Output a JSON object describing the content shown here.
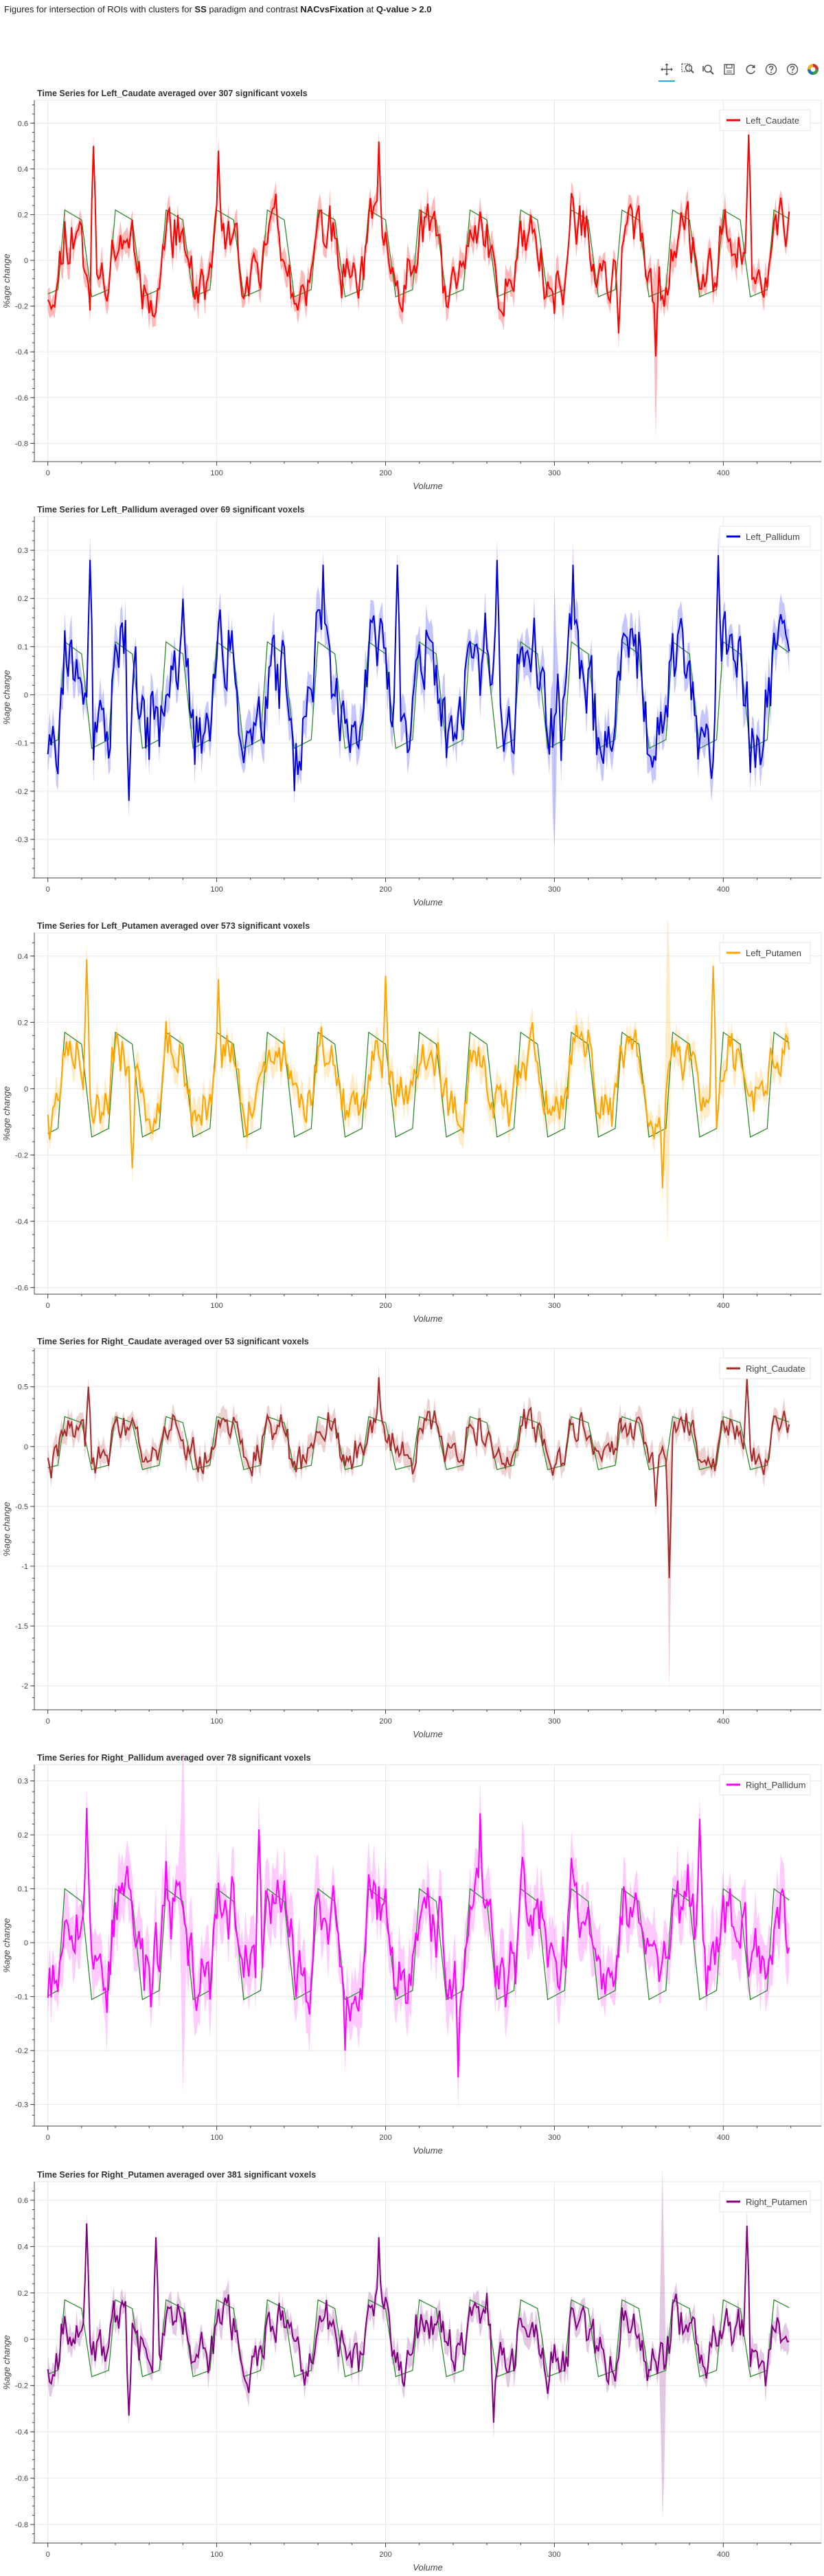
{
  "page": {
    "title_segments": [
      {
        "text": "Figures for intersection of ROIs with clusters for ",
        "bold": false
      },
      {
        "text": "SS",
        "bold": true
      },
      {
        "text": " paradigm and contrast ",
        "bold": false
      },
      {
        "text": "NACvsFixation",
        "bold": true
      },
      {
        "text": " at ",
        "bold": false
      },
      {
        "text": "Q-value > 2.0",
        "bold": true
      }
    ]
  },
  "toolbar": {
    "tools": [
      {
        "icon": "pan-icon",
        "active": true
      },
      {
        "icon": "box-zoom-icon",
        "active": false
      },
      {
        "icon": "wheel-zoom-icon",
        "active": false
      },
      {
        "icon": "save-icon",
        "active": false
      },
      {
        "icon": "reset-icon",
        "active": false
      },
      {
        "icon": "hover-icon",
        "active": false
      },
      {
        "icon": "help-icon",
        "active": false
      },
      {
        "icon": "bokeh-logo-icon",
        "active": false
      }
    ]
  },
  "chart_data": [
    {
      "type": "line",
      "title": "Time Series for Left_Caudate averaged over 307 significant voxels",
      "xlabel": "Volume",
      "ylabel": "%age change",
      "xlim": [
        -8,
        458
      ],
      "ylim": [
        -0.88,
        0.7
      ],
      "xticks": [
        0,
        100,
        200,
        300,
        400
      ],
      "yticks": [
        -0.8,
        -0.6,
        -0.4,
        -0.2,
        0,
        0.2,
        0.4,
        0.6
      ],
      "ytick_labels": [
        "-0.8",
        "-0.6",
        "-0.4",
        "-0.2",
        "0",
        "0.2",
        "0.4",
        "0.6"
      ],
      "grid": true,
      "legend_position": "top-right",
      "series": [
        {
          "name": "Left_Caudate",
          "color": "#ff0000",
          "band_color": "#ff0000",
          "amplitude": 0.18,
          "mean": -0.02,
          "band": 0.05,
          "seed": 11,
          "peaks": [
            [
              27,
              0.5
            ],
            [
              101,
              0.48
            ],
            [
              196,
              0.52
            ],
            [
              415,
              0.55
            ]
          ],
          "dips": [
            [
              338,
              -0.32
            ],
            [
              360,
              -0.42
            ]
          ],
          "wide_dips": [
            [
              360,
              -0.78
            ]
          ]
        },
        {
          "name": "model",
          "color": "#2e8b2e",
          "model": true,
          "amplitude": 0.24,
          "base": -0.02
        }
      ]
    },
    {
      "type": "line",
      "title": "Time Series for Left_Pallidum averaged over 69 significant voxels",
      "xlabel": "Volume",
      "ylabel": "%age change",
      "xlim": [
        -8,
        458
      ],
      "ylim": [
        -0.38,
        0.37
      ],
      "xticks": [
        0,
        100,
        200,
        300,
        400
      ],
      "yticks": [
        -0.3,
        -0.2,
        -0.1,
        0,
        0.1,
        0.2,
        0.3
      ],
      "ytick_labels": [
        "-0.3",
        "-0.2",
        "-0.1",
        "0",
        "0.1",
        "0.2",
        "0.3"
      ],
      "grid": true,
      "legend_position": "top-right",
      "series": [
        {
          "name": "Left_Pallidum",
          "color": "#0000dd",
          "band_color": "#3333ff",
          "amplitude": 0.13,
          "mean": -0.02,
          "band": 0.035,
          "seed": 23,
          "peaks": [
            [
              25,
              0.28
            ],
            [
              163,
              0.27
            ],
            [
              207,
              0.27
            ],
            [
              266,
              0.28
            ],
            [
              311,
              0.27
            ],
            [
              397,
              0.29
            ]
          ],
          "dips": [
            [
              48,
              -0.22
            ],
            [
              146,
              -0.2
            ]
          ],
          "wide_dips": [
            [
              300,
              -0.32
            ]
          ]
        },
        {
          "name": "model",
          "color": "#2e8b2e",
          "model": true,
          "amplitude": 0.14,
          "base": -0.03
        }
      ]
    },
    {
      "type": "line",
      "title": "Time Series for Left_Putamen averaged over 573 significant voxels",
      "xlabel": "Volume",
      "ylabel": "%age change",
      "xlim": [
        -8,
        458
      ],
      "ylim": [
        -0.62,
        0.47
      ],
      "xticks": [
        0,
        100,
        200,
        300,
        400
      ],
      "yticks": [
        -0.6,
        -0.4,
        -0.2,
        0,
        0.2,
        0.4
      ],
      "ytick_labels": [
        "-0.6",
        "-0.4",
        "-0.2",
        "0",
        "0.2",
        "0.4"
      ],
      "grid": true,
      "legend_position": "top-right",
      "series": [
        {
          "name": "Left_Putamen",
          "color": "#ffa500",
          "band_color": "#ffb733",
          "amplitude": 0.12,
          "mean": 0.0,
          "band": 0.04,
          "seed": 37,
          "peaks": [
            [
              23,
              0.39
            ],
            [
              101,
              0.33
            ],
            [
              200,
              0.34
            ],
            [
              394,
              0.37
            ]
          ],
          "dips": [
            [
              50,
              -0.24
            ],
            [
              364,
              -0.3
            ]
          ],
          "wide_dips": [
            [
              367,
              -0.48
            ]
          ]
        },
        {
          "name": "model",
          "color": "#2e8b2e",
          "model": true,
          "amplitude": 0.2,
          "base": -0.03
        }
      ]
    },
    {
      "type": "line",
      "title": "Time Series for Right_Caudate averaged over 53 significant voxels",
      "xlabel": "Volume",
      "ylabel": "%age change",
      "xlim": [
        -8,
        458
      ],
      "ylim": [
        -2.2,
        0.82
      ],
      "xticks": [
        0,
        100,
        200,
        300,
        400
      ],
      "yticks": [
        -2,
        -1.5,
        -1,
        -0.5,
        0,
        0.5
      ],
      "ytick_labels": [
        "-2",
        "-1.5",
        "-1",
        "-0.5",
        "0",
        "0.5"
      ],
      "grid": true,
      "legend_position": "top-right",
      "series": [
        {
          "name": "Right_Caudate",
          "color": "#a52a2a",
          "band_color": "#c05a5a",
          "amplitude": 0.2,
          "mean": 0.0,
          "band": 0.08,
          "seed": 41,
          "peaks": [
            [
              196,
              0.58
            ],
            [
              414,
              0.57
            ],
            [
              24,
              0.5
            ]
          ],
          "dips": [
            [
              368,
              -1.1
            ],
            [
              360,
              -0.5
            ]
          ],
          "wide_dips": [
            [
              368,
              -2.05
            ]
          ]
        },
        {
          "name": "model",
          "color": "#2e8b2e",
          "model": true,
          "amplitude": 0.28,
          "base": -0.03
        }
      ]
    },
    {
      "type": "line",
      "title": "Time Series for Right_Pallidum averaged over 78 significant voxels",
      "xlabel": "Volume",
      "ylabel": "%age change",
      "xlim": [
        -8,
        458
      ],
      "ylim": [
        -0.34,
        0.33
      ],
      "xticks": [
        0,
        100,
        200,
        300,
        400
      ],
      "yticks": [
        -0.3,
        -0.2,
        -0.1,
        0,
        0.1,
        0.2,
        0.3
      ],
      "ytick_labels": [
        "-0.3",
        "-0.2",
        "-0.1",
        "0",
        "0.1",
        "0.2",
        "0.3"
      ],
      "grid": true,
      "legend_position": "top-right",
      "series": [
        {
          "name": "Right_Pallidum",
          "color": "#ff00ff",
          "band_color": "#ff44ff",
          "amplitude": 0.1,
          "mean": -0.01,
          "band": 0.05,
          "seed": 53,
          "peaks": [
            [
              23,
              0.25
            ],
            [
              125,
              0.21
            ],
            [
              256,
              0.24
            ],
            [
              386,
              0.23
            ]
          ],
          "dips": [
            [
              176,
              -0.2
            ],
            [
              243,
              -0.25
            ]
          ],
          "wide_dips": [
            [
              80,
              -0.28
            ]
          ]
        },
        {
          "name": "model",
          "color": "#2e8b2e",
          "model": true,
          "amplitude": 0.13,
          "base": -0.03
        }
      ]
    },
    {
      "type": "line",
      "title": "Time Series for Right_Putamen averaged over 381 significant voxels",
      "xlabel": "Volume",
      "ylabel": "%age change",
      "xlim": [
        -8,
        458
      ],
      "ylim": [
        -0.88,
        0.68
      ],
      "xticks": [
        0,
        100,
        200,
        300,
        400
      ],
      "yticks": [
        -0.8,
        -0.6,
        -0.4,
        -0.2,
        0,
        0.2,
        0.4,
        0.6
      ],
      "ytick_labels": [
        "-0.8",
        "-0.6",
        "-0.4",
        "-0.2",
        "0",
        "0.2",
        "0.4",
        "0.6"
      ],
      "grid": true,
      "legend_position": "top-right",
      "series": [
        {
          "name": "Right_Putamen",
          "color": "#800080",
          "band_color": "#9b3b9b",
          "amplitude": 0.14,
          "mean": -0.02,
          "band": 0.05,
          "seed": 67,
          "peaks": [
            [
              23,
              0.5
            ],
            [
              64,
              0.44
            ],
            [
              196,
              0.44
            ],
            [
              414,
              0.49
            ]
          ],
          "dips": [
            [
              48,
              -0.33
            ],
            [
              264,
              -0.36
            ]
          ],
          "wide_dips": [
            [
              364,
              -0.78
            ]
          ]
        },
        {
          "name": "model",
          "color": "#2e8b2e",
          "model": true,
          "amplitude": 0.21,
          "base": -0.04
        }
      ]
    }
  ]
}
